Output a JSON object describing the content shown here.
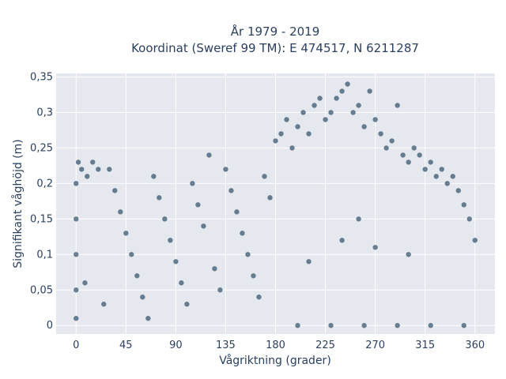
{
  "chart_data": {
    "type": "scatter",
    "title_lines": [
      "År 1979 - 2019",
      "Koordinat (Sweref 99 TM): E 474517, N 6211287"
    ],
    "xlabel": "Vågriktning (grader)",
    "ylabel": "Signifikant våghöjd (m)",
    "xlim": [
      -18,
      378
    ],
    "ylim": [
      -0.012,
      0.355
    ],
    "x_ticks": [
      0,
      45,
      90,
      135,
      180,
      225,
      270,
      315,
      360
    ],
    "x_tick_labels": [
      "0",
      "45",
      "90",
      "135",
      "180",
      "225",
      "270",
      "315",
      "360"
    ],
    "y_ticks": [
      0,
      0.05,
      0.1,
      0.15,
      0.2,
      0.25,
      0.3,
      0.35
    ],
    "y_tick_labels": [
      "0",
      "0,05",
      "0,1",
      "0,15",
      "0,2",
      "0,25",
      "0,3",
      "0,35"
    ],
    "grid": true,
    "marker_color": "#2f4f66",
    "background": "#e5e8ef",
    "series": [
      {
        "points": [
          [
            0,
            0.01
          ],
          [
            0,
            0.05
          ],
          [
            0,
            0.1
          ],
          [
            0,
            0.15
          ],
          [
            0,
            0.2
          ],
          [
            2,
            0.23
          ],
          [
            5,
            0.22
          ],
          [
            10,
            0.21
          ],
          [
            15,
            0.23
          ],
          [
            20,
            0.22
          ],
          [
            8,
            0.06
          ],
          [
            25,
            0.03
          ],
          [
            30,
            0.22
          ],
          [
            35,
            0.19
          ],
          [
            40,
            0.16
          ],
          [
            45,
            0.13
          ],
          [
            50,
            0.1
          ],
          [
            55,
            0.07
          ],
          [
            60,
            0.04
          ],
          [
            65,
            0.01
          ],
          [
            70,
            0.21
          ],
          [
            75,
            0.18
          ],
          [
            80,
            0.15
          ],
          [
            85,
            0.12
          ],
          [
            90,
            0.09
          ],
          [
            95,
            0.06
          ],
          [
            100,
            0.03
          ],
          [
            105,
            0.2
          ],
          [
            110,
            0.17
          ],
          [
            115,
            0.14
          ],
          [
            120,
            0.24
          ],
          [
            125,
            0.08
          ],
          [
            130,
            0.05
          ],
          [
            135,
            0.22
          ],
          [
            140,
            0.19
          ],
          [
            145,
            0.16
          ],
          [
            150,
            0.13
          ],
          [
            155,
            0.1
          ],
          [
            160,
            0.07
          ],
          [
            165,
            0.04
          ],
          [
            170,
            0.21
          ],
          [
            175,
            0.18
          ],
          [
            180,
            0.26
          ],
          [
            185,
            0.27
          ],
          [
            190,
            0.29
          ],
          [
            195,
            0.25
          ],
          [
            200,
            0.28
          ],
          [
            205,
            0.3
          ],
          [
            210,
            0.27
          ],
          [
            215,
            0.31
          ],
          [
            220,
            0.32
          ],
          [
            225,
            0.29
          ],
          [
            230,
            0.3
          ],
          [
            235,
            0.32
          ],
          [
            240,
            0.33
          ],
          [
            245,
            0.34
          ],
          [
            250,
            0.3
          ],
          [
            255,
            0.31
          ],
          [
            260,
            0.28
          ],
          [
            265,
            0.33
          ],
          [
            270,
            0.29
          ],
          [
            275,
            0.27
          ],
          [
            280,
            0.25
          ],
          [
            285,
            0.26
          ],
          [
            290,
            0.31
          ],
          [
            295,
            0.24
          ],
          [
            300,
            0.23
          ],
          [
            305,
            0.25
          ],
          [
            310,
            0.24
          ],
          [
            315,
            0.22
          ],
          [
            320,
            0.23
          ],
          [
            325,
            0.21
          ],
          [
            330,
            0.22
          ],
          [
            335,
            0.2
          ],
          [
            340,
            0.21
          ],
          [
            345,
            0.19
          ],
          [
            350,
            0.17
          ],
          [
            355,
            0.15
          ],
          [
            360,
            0.12
          ],
          [
            200,
            0.0
          ],
          [
            230,
            0.0
          ],
          [
            260,
            0.0
          ],
          [
            290,
            0.0
          ],
          [
            320,
            0.0
          ],
          [
            350,
            0.0
          ],
          [
            210,
            0.09
          ],
          [
            240,
            0.12
          ],
          [
            255,
            0.15
          ],
          [
            270,
            0.11
          ],
          [
            300,
            0.1
          ]
        ]
      }
    ]
  }
}
